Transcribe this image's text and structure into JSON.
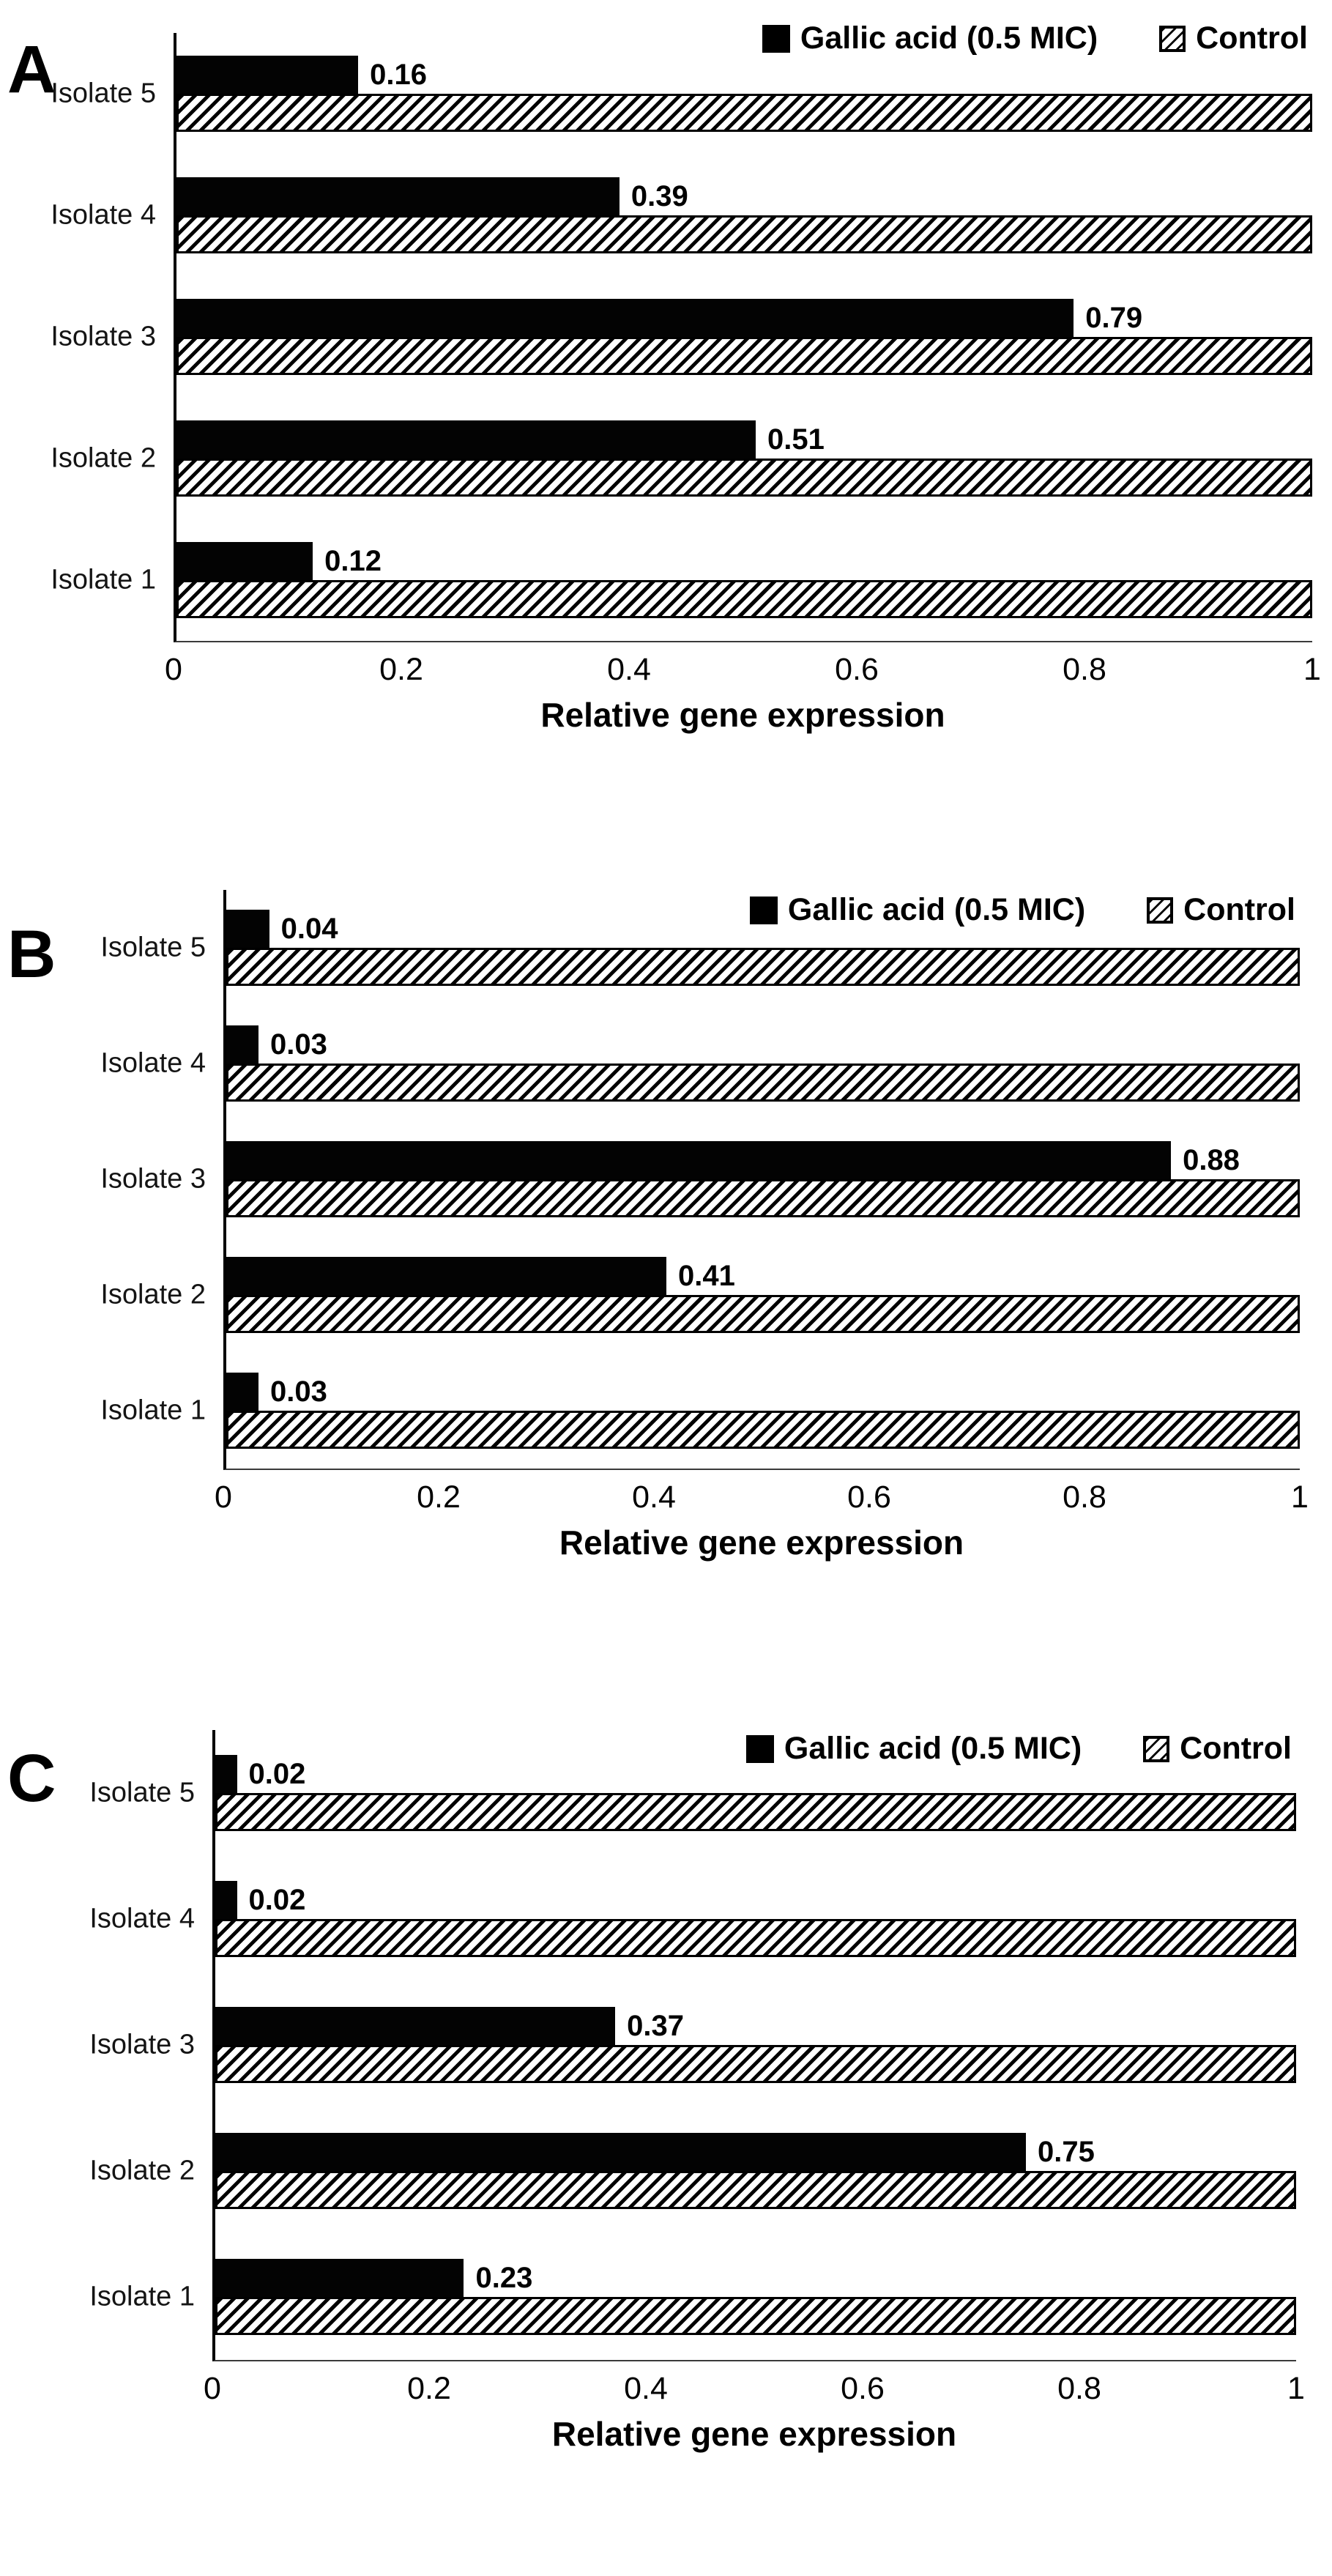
{
  "figure": {
    "background": "#ffffff",
    "bar_color": "#000000",
    "legend": {
      "series1_label": "Gallic acid (0.5 MIC)",
      "series2_label": "Control",
      "series1_swatch": "black-filled-square",
      "series2_swatch": "diagonal-hatch-square"
    },
    "xlabel": "Relative gene expression",
    "ticks": [
      "0",
      "0.2",
      "0.4",
      "0.6",
      "0.8",
      "1"
    ]
  },
  "chart_data": [
    {
      "type": "bar",
      "panel": "A",
      "orientation": "horizontal",
      "category_order": "top-to-bottom",
      "categories": [
        "Isolate 5",
        "Isolate 4",
        "Isolate 3",
        "Isolate 2",
        "Isolate 1"
      ],
      "series": [
        {
          "name": "Gallic acid (0.5 MIC)",
          "style": "solid-black",
          "values": [
            0.16,
            0.39,
            0.79,
            0.51,
            0.12
          ]
        },
        {
          "name": "Control",
          "style": "diagonal-hatch",
          "values": [
            1,
            1,
            1,
            1,
            1
          ]
        }
      ],
      "value_labels": [
        "0.16",
        "0.39",
        "0.79",
        "0.51",
        "0.12"
      ],
      "xlabel": "Relative gene expression",
      "xlim": [
        0,
        1
      ],
      "xticks": [
        0,
        0.2,
        0.4,
        0.6,
        0.8,
        1
      ],
      "legend_position": "top-right",
      "grid": false
    },
    {
      "type": "bar",
      "panel": "B",
      "orientation": "horizontal",
      "category_order": "top-to-bottom",
      "categories": [
        "Isolate 5",
        "Isolate 4",
        "Isolate 3",
        "Isolate 2",
        "Isolate 1"
      ],
      "series": [
        {
          "name": "Gallic acid (0.5 MIC)",
          "style": "solid-black",
          "values": [
            0.04,
            0.03,
            0.88,
            0.41,
            0.03
          ]
        },
        {
          "name": "Control",
          "style": "diagonal-hatch",
          "values": [
            1,
            1,
            1,
            1,
            1
          ]
        }
      ],
      "value_labels": [
        "0.04",
        "0.03",
        "0.88",
        "0.41",
        "0.03"
      ],
      "xlabel": "Relative gene expression",
      "xlim": [
        0,
        1
      ],
      "xticks": [
        0,
        0.2,
        0.4,
        0.6,
        0.8,
        1
      ],
      "legend_position": "top-right",
      "grid": false
    },
    {
      "type": "bar",
      "panel": "C",
      "orientation": "horizontal",
      "category_order": "top-to-bottom",
      "categories": [
        "Isolate 5",
        "Isolate 4",
        "Isolate 3",
        "Isolate 2",
        "Isolate 1"
      ],
      "series": [
        {
          "name": "Gallic acid (0.5 MIC)",
          "style": "solid-black",
          "values": [
            0.02,
            0.02,
            0.37,
            0.75,
            0.23
          ]
        },
        {
          "name": "Control",
          "style": "diagonal-hatch",
          "values": [
            1,
            1,
            1,
            1,
            1
          ]
        }
      ],
      "value_labels": [
        "0.02",
        "0.02",
        "0.37",
        "0.75",
        "0.23"
      ],
      "xlabel": "Relative gene expression",
      "xlim": [
        0,
        1
      ],
      "xticks": [
        0,
        0.2,
        0.4,
        0.6,
        0.8,
        1
      ],
      "legend_position": "top-right",
      "grid": false
    }
  ]
}
